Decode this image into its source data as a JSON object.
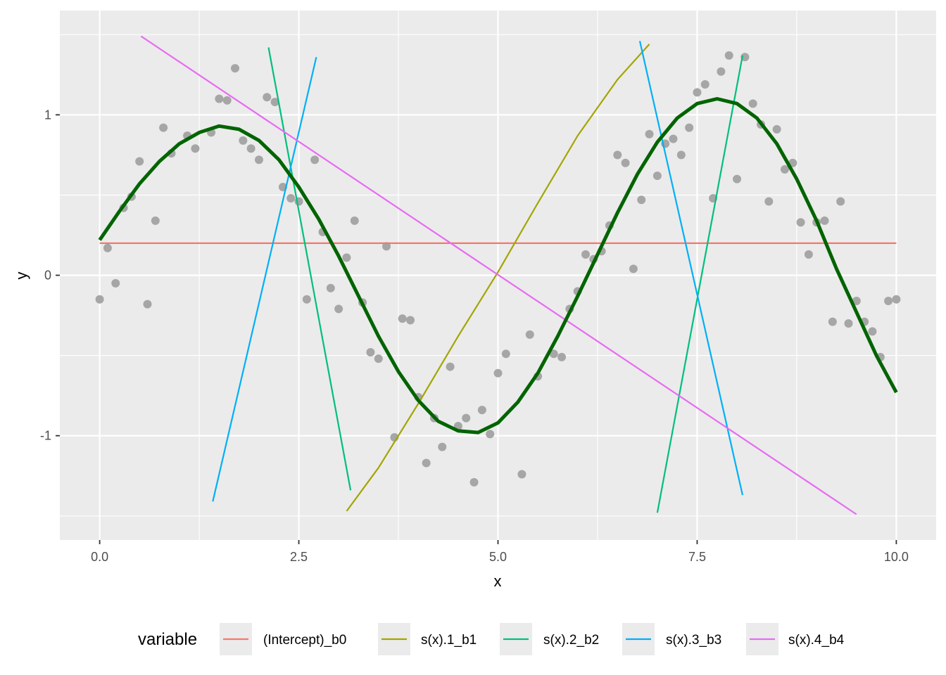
{
  "chart_data": {
    "type": "line",
    "title": "",
    "xlabel": "x",
    "ylabel": "y",
    "xlim": [
      -0.5,
      10.5
    ],
    "ylim": [
      -1.65,
      1.65
    ],
    "x_ticks": [
      0,
      2.5,
      5,
      7.5,
      10
    ],
    "x_tick_labels": [
      "0.0",
      "2.5",
      "5.0",
      "7.5",
      "10.0"
    ],
    "y_ticks": [
      -1,
      0,
      1
    ],
    "y_tick_labels": [
      "-1",
      "0",
      "1"
    ],
    "grid": true,
    "legend": {
      "title": "variable",
      "position": "bottom"
    },
    "points": {
      "color": "#a6a6a6",
      "x": [
        0.0,
        0.1,
        0.2,
        0.3,
        0.4,
        0.5,
        0.6,
        0.7,
        0.8,
        0.9,
        1.1,
        1.2,
        1.4,
        1.5,
        1.6,
        1.7,
        1.8,
        1.9,
        2.0,
        2.1,
        2.2,
        2.3,
        2.4,
        2.5,
        2.6,
        2.7,
        2.8,
        2.9,
        3.0,
        3.1,
        3.2,
        3.3,
        3.4,
        3.5,
        3.6,
        3.7,
        3.8,
        3.9,
        4.0,
        4.1,
        4.2,
        4.3,
        4.4,
        4.5,
        4.6,
        4.7,
        4.8,
        4.9,
        5.0,
        5.1,
        5.3,
        5.4,
        5.5,
        5.7,
        5.8,
        5.9,
        6.0,
        6.1,
        6.2,
        6.3,
        6.4,
        6.5,
        6.6,
        6.7,
        6.8,
        6.9,
        7.0,
        7.1,
        7.2,
        7.3,
        7.4,
        7.5,
        7.6,
        7.7,
        7.8,
        7.9,
        8.0,
        8.1,
        8.2,
        8.3,
        8.4,
        8.5,
        8.6,
        8.7,
        8.8,
        8.9,
        9.0,
        9.1,
        9.2,
        9.3,
        9.4,
        9.5,
        9.6,
        9.7,
        9.8,
        9.9,
        10.0
      ],
      "y": [
        -0.15,
        0.17,
        -0.05,
        0.42,
        0.49,
        0.71,
        -0.18,
        0.34,
        0.92,
        0.76,
        0.87,
        0.79,
        0.89,
        1.1,
        1.09,
        1.29,
        0.84,
        0.79,
        0.72,
        1.11,
        1.08,
        0.55,
        0.48,
        0.46,
        -0.15,
        0.72,
        0.27,
        -0.08,
        -0.21,
        0.11,
        0.34,
        -0.17,
        -0.48,
        -0.52,
        0.18,
        -1.01,
        -0.27,
        -0.28,
        -0.76,
        -1.17,
        -0.89,
        -1.07,
        -0.57,
        -0.94,
        -0.89,
        -1.29,
        -0.84,
        -0.99,
        -0.61,
        -0.49,
        -1.24,
        -0.37,
        -0.63,
        -0.49,
        -0.51,
        -0.21,
        -0.1,
        0.13,
        0.1,
        0.15,
        0.31,
        0.75,
        0.7,
        0.04,
        0.47,
        0.88,
        0.62,
        0.82,
        0.85,
        0.75,
        0.92,
        1.14,
        1.19,
        0.48,
        1.27,
        1.37,
        0.6,
        1.36,
        1.07,
        0.94,
        0.46,
        0.91,
        0.66,
        0.7,
        0.33,
        0.13,
        0.33,
        0.34,
        -0.29,
        0.46,
        -0.3,
        -0.16,
        -0.29,
        -0.35,
        -0.51,
        -0.16,
        -0.15
      ]
    },
    "series": [
      {
        "name": "(Intercept)_b0",
        "color": "#F8766D",
        "x": [
          0,
          10
        ],
        "y": [
          0.2,
          0.2
        ]
      },
      {
        "name": "s(x).1_b1",
        "color": "#A3A500",
        "x": [
          3.1,
          3.5,
          4.0,
          4.5,
          5.0,
          5.5,
          6.0,
          6.5,
          6.9
        ],
        "y": [
          -1.47,
          -1.2,
          -0.8,
          -0.38,
          0.02,
          0.45,
          0.87,
          1.22,
          1.44
        ]
      },
      {
        "name": "s(x).2_b2",
        "color": "#00BF7D",
        "segments": [
          {
            "x": [
              2.12,
              3.15
            ],
            "y": [
              1.42,
              -1.34
            ]
          },
          {
            "x": [
              7.0,
              8.07
            ],
            "y": [
              -1.48,
              1.37
            ]
          }
        ]
      },
      {
        "name": "s(x).3_b3",
        "color": "#00B0F6",
        "segments": [
          {
            "x": [
              1.42,
              2.72
            ],
            "y": [
              -1.41,
              1.36
            ]
          },
          {
            "x": [
              6.78,
              8.07
            ],
            "y": [
              1.46,
              -1.37
            ]
          }
        ]
      },
      {
        "name": "s(x).4_b4",
        "color": "#E76BF3",
        "x": [
          0.52,
          9.5
        ],
        "y": [
          1.49,
          -1.49
        ]
      }
    ],
    "fit": {
      "color": "#006400",
      "x": [
        0.0,
        0.25,
        0.5,
        0.75,
        1.0,
        1.25,
        1.5,
        1.75,
        2.0,
        2.25,
        2.5,
        2.75,
        3.0,
        3.25,
        3.5,
        3.75,
        4.0,
        4.25,
        4.5,
        4.75,
        5.0,
        5.25,
        5.5,
        5.75,
        6.0,
        6.25,
        6.5,
        6.75,
        7.0,
        7.25,
        7.5,
        7.75,
        8.0,
        8.25,
        8.5,
        8.75,
        9.0,
        9.25,
        9.5,
        9.75,
        10.0
      ],
      "y": [
        0.22,
        0.4,
        0.57,
        0.71,
        0.82,
        0.89,
        0.93,
        0.91,
        0.84,
        0.72,
        0.55,
        0.35,
        0.12,
        -0.13,
        -0.38,
        -0.6,
        -0.78,
        -0.91,
        -0.97,
        -0.98,
        -0.92,
        -0.79,
        -0.61,
        -0.38,
        -0.13,
        0.13,
        0.39,
        0.63,
        0.83,
        0.98,
        1.07,
        1.1,
        1.07,
        0.98,
        0.82,
        0.6,
        0.34,
        0.04,
        -0.23,
        -0.5,
        -0.73
      ]
    }
  }
}
